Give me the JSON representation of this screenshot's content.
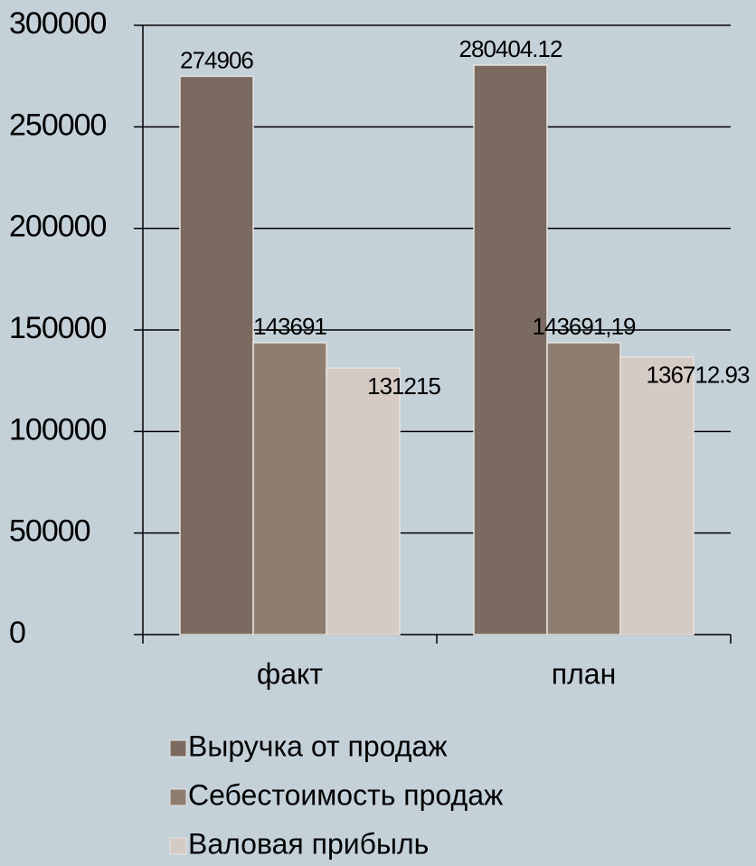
{
  "chart_data": {
    "type": "bar",
    "categories": [
      "факт",
      "план"
    ],
    "series": [
      {
        "name": "Выручка от продаж",
        "color": "#7a6a60",
        "values": [
          274906,
          280404.12
        ],
        "value_labels": [
          "274906",
          "280404.12"
        ]
      },
      {
        "name": "Себестоимость продаж",
        "color": "#8e7e72",
        "values": [
          143691,
          143691.19
        ],
        "value_labels": [
          "143691",
          "143691,19"
        ]
      },
      {
        "name": "Валовая прибыль",
        "color": "#d5cbc4",
        "values": [
          131215,
          136712.93
        ],
        "value_labels": [
          "131215",
          "136712.93"
        ]
      }
    ],
    "ylim": [
      0,
      300000
    ],
    "yticks": [
      0,
      50000,
      100000,
      150000,
      200000,
      250000,
      300000
    ],
    "grid": true
  }
}
